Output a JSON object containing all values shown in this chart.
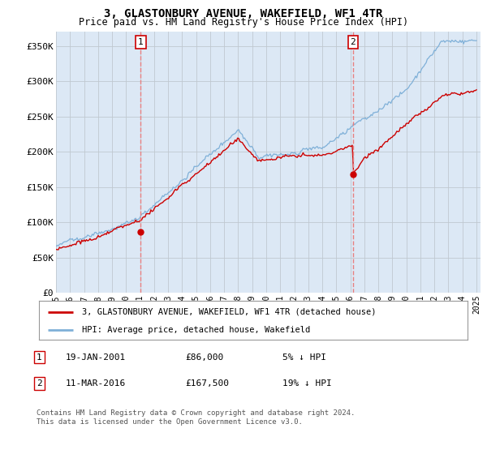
{
  "title": "3, GLASTONBURY AVENUE, WAKEFIELD, WF1 4TR",
  "subtitle": "Price paid vs. HM Land Registry's House Price Index (HPI)",
  "ylim": [
    0,
    370000
  ],
  "yticks": [
    0,
    50000,
    100000,
    150000,
    200000,
    250000,
    300000,
    350000
  ],
  "ytick_labels": [
    "£0",
    "£50K",
    "£100K",
    "£150K",
    "£200K",
    "£250K",
    "£300K",
    "£350K"
  ],
  "bg_color": "#dce8f5",
  "line1_color": "#cc0000",
  "line2_color": "#7fb0d8",
  "vline_color": "#e88080",
  "marker1_year": 2001.05,
  "marker1_value": 86000,
  "marker2_year": 2016.19,
  "marker2_value": 167500,
  "legend_label1": "3, GLASTONBURY AVENUE, WAKEFIELD, WF1 4TR (detached house)",
  "legend_label2": "HPI: Average price, detached house, Wakefield",
  "transaction1": "19-JAN-2001",
  "transaction1_price": "£86,000",
  "transaction1_hpi": "5% ↓ HPI",
  "transaction2": "11-MAR-2016",
  "transaction2_price": "£167,500",
  "transaction2_hpi": "19% ↓ HPI",
  "footer": "Contains HM Land Registry data © Crown copyright and database right 2024.\nThis data is licensed under the Open Government Licence v3.0."
}
